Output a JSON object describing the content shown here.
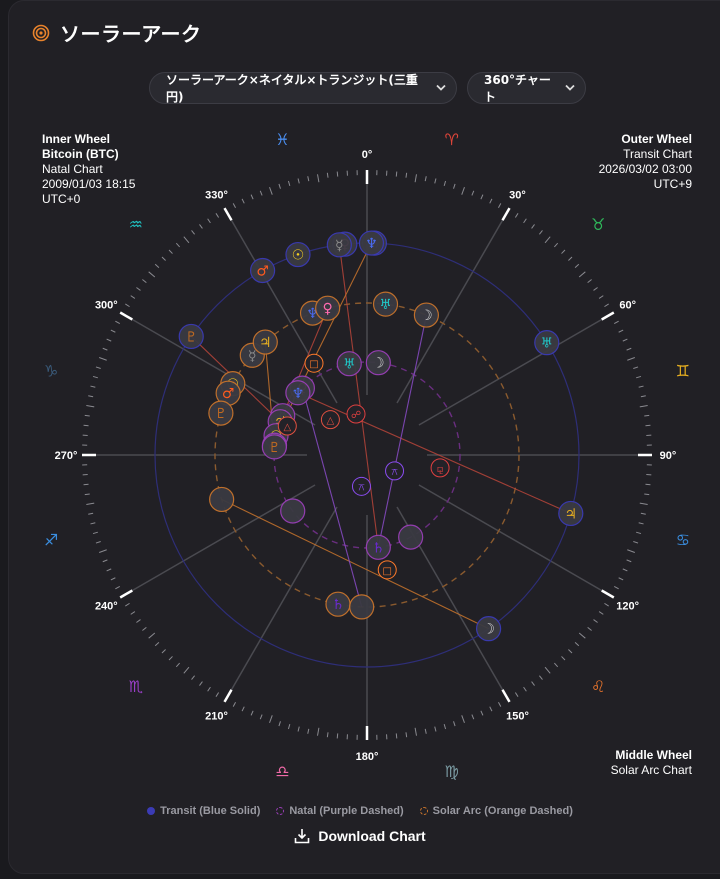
{
  "header": {
    "title": "ソーラーアーク",
    "icon": "target-icon"
  },
  "selects": {
    "chart_type": {
      "value": "ソーラーアーク×ネイタル×トランジット(三重円)"
    },
    "view": {
      "value": "360°チャート"
    }
  },
  "inner_wheel": {
    "label": "Inner Wheel",
    "subject": "Bitcoin (BTC)",
    "chart": "Natal Chart",
    "datetime": "2009/01/03 18:15",
    "tz": "UTC+0"
  },
  "outer_wheel": {
    "label": "Outer Wheel",
    "chart": "Transit Chart",
    "datetime": "2026/03/02 03:00",
    "tz": "UTC+9"
  },
  "middle_wheel": {
    "label": "Middle Wheel",
    "chart": "Solar Arc Chart"
  },
  "legend": [
    {
      "label": "Transit (Blue Solid)",
      "color": "#3b3bb5",
      "style": "solid"
    },
    {
      "label": "Natal (Purple Dashed)",
      "color": "#9a3fb8",
      "style": "dashed"
    },
    {
      "label": "Solar Arc (Orange Dashed)",
      "color": "#c8742c",
      "style": "dashed"
    }
  ],
  "download_label": "Download Chart",
  "colors": {
    "transit": "#3b3bb5",
    "natal": "#9a3fb8",
    "solar_arc": "#c8742c",
    "aspect_red": "#b8453a",
    "aspect_orange": "#c8742c",
    "aspect_purple": "#8a4cc8"
  },
  "chart_data": {
    "type": "radial-wheel",
    "degree_labels": [
      "0°",
      "30°",
      "60°",
      "90°",
      "120°",
      "150°",
      "180°",
      "210°",
      "240°",
      "270°",
      "300°",
      "330°"
    ],
    "zodiac": [
      {
        "sign": "Aries",
        "glyph": "♈",
        "color": "#e0453a",
        "mid_deg": 15
      },
      {
        "sign": "Taurus",
        "glyph": "♉",
        "color": "#2fb85a",
        "mid_deg": 45
      },
      {
        "sign": "Gemini",
        "glyph": "♊",
        "color": "#e8b020",
        "mid_deg": 75
      },
      {
        "sign": "Cancer",
        "glyph": "♋",
        "color": "#3a8ee0",
        "mid_deg": 105
      },
      {
        "sign": "Leo",
        "glyph": "♌",
        "color": "#e8742c",
        "mid_deg": 135
      },
      {
        "sign": "Virgo",
        "glyph": "♍",
        "color": "#7a9aa2",
        "mid_deg": 165
      },
      {
        "sign": "Libra",
        "glyph": "♎",
        "color": "#f06aa8",
        "mid_deg": 195
      },
      {
        "sign": "Scorpio",
        "glyph": "♏",
        "color": "#9a3fc8",
        "mid_deg": 225
      },
      {
        "sign": "Sagittarius",
        "glyph": "♐",
        "color": "#3a8ee0",
        "mid_deg": 255
      },
      {
        "sign": "Capricorn",
        "glyph": "♑",
        "color": "#3a5a7a",
        "mid_deg": 285
      },
      {
        "sign": "Aquarius",
        "glyph": "♒",
        "color": "#20c0c0",
        "mid_deg": 315
      },
      {
        "sign": "Pisces",
        "glyph": "♓",
        "color": "#4a8ef0",
        "mid_deg": 345
      }
    ],
    "house_cusps_deg": [
      0,
      30,
      60,
      90,
      120,
      150,
      180,
      210,
      240,
      270,
      300,
      330
    ],
    "transit": [
      {
        "name": "Mars",
        "glyph": "♂",
        "color": "#ff5a1e",
        "deg": 330.5
      },
      {
        "name": "Sun",
        "glyph": "☉",
        "color": "#f5d020",
        "deg": 341
      },
      {
        "name": "Venus",
        "glyph": "♀",
        "color": "#ff6ab0",
        "deg": 354
      },
      {
        "name": "Saturn",
        "glyph": "♄",
        "color": "#6a2ad0",
        "deg": 2
      },
      {
        "name": "Mercury",
        "glyph": "☿",
        "color": "#8a8a8a",
        "deg": 352.5
      },
      {
        "name": "Neptune",
        "glyph": "♆",
        "color": "#4a6af0",
        "deg": 1.2
      },
      {
        "name": "Pluto",
        "glyph": "♇",
        "color": "#c06a20",
        "deg": 304
      },
      {
        "name": "Uranus",
        "glyph": "♅",
        "color": "#20c8c8",
        "deg": 58
      },
      {
        "name": "Jupiter",
        "glyph": "♃",
        "color": "#e8b020",
        "deg": 106
      },
      {
        "name": "Moon",
        "glyph": "☽",
        "color": "#d0d0d0",
        "deg": 145
      }
    ],
    "solar_arc": [
      {
        "name": "Mercury",
        "glyph": "☿",
        "color": "#8a8a8a",
        "deg": 311
      },
      {
        "name": "Jupiter",
        "glyph": "♃",
        "color": "#e8b020",
        "deg": 318
      },
      {
        "name": "Neptune",
        "glyph": "♆",
        "color": "#4a6af0",
        "deg": 339
      },
      {
        "name": "Venus",
        "glyph": "♀",
        "color": "#ff6ab0",
        "deg": 345
      },
      {
        "name": "Uranus",
        "glyph": "♅",
        "color": "#20c8c8",
        "deg": 7
      },
      {
        "name": "Moon",
        "glyph": "☽",
        "color": "#d0d0d0",
        "deg": 23
      },
      {
        "name": "Sun",
        "glyph": "☉",
        "color": "#f5d020",
        "deg": 298
      },
      {
        "name": "Mars",
        "glyph": "♂",
        "color": "#ff5a1e",
        "deg": 294
      },
      {
        "name": "Pluto",
        "glyph": "♇",
        "color": "#c06a20",
        "deg": 286
      },
      {
        "name": "Node-empty-1",
        "glyph": "",
        "color": "#888",
        "deg": 253
      },
      {
        "name": "Saturn",
        "glyph": "♄",
        "color": "#6a2ad0",
        "deg": 191
      },
      {
        "name": "Node-empty-2",
        "glyph": "",
        "color": "#888",
        "deg": 182
      }
    ],
    "natal": [
      {
        "name": "Uranus",
        "glyph": "♅",
        "color": "#20c8c8",
        "deg": 349
      },
      {
        "name": "Moon",
        "glyph": "☽",
        "color": "#d0d0d0",
        "deg": 7
      },
      {
        "name": "Venus",
        "glyph": "♀",
        "color": "#ff6ab0",
        "deg": 316
      },
      {
        "name": "Neptune",
        "glyph": "♆",
        "color": "#4a6af0",
        "deg": 312
      },
      {
        "name": "Mercury",
        "glyph": "☿",
        "color": "#8a8a8a",
        "deg": 295
      },
      {
        "name": "Jupiter",
        "glyph": "♃",
        "color": "#e8b020",
        "deg": 291
      },
      {
        "name": "Sun",
        "glyph": "☉",
        "color": "#f5d020",
        "deg": 282
      },
      {
        "name": "Mars",
        "glyph": "♂",
        "color": "#ff5a1e",
        "deg": 276
      },
      {
        "name": "Pluto",
        "glyph": "♇",
        "color": "#c06a20",
        "deg": 275
      },
      {
        "name": "Node-empty",
        "glyph": "",
        "color": "#888",
        "deg": 233
      },
      {
        "name": "Saturn",
        "glyph": "♄",
        "color": "#6a2ad0",
        "deg": 173
      },
      {
        "name": "Chiron-empty",
        "glyph": "",
        "color": "#888",
        "deg": 152
      }
    ],
    "aspect_markers": [
      {
        "glyph": "△",
        "color": "#e05040",
        "x_deg": 314,
        "r_frac": 0.24,
        "ring": "sa"
      },
      {
        "glyph": "□",
        "color": "#ff7a2a",
        "x_deg": 330,
        "r_frac": 0.5
      },
      {
        "glyph": "△",
        "color": "#e05040",
        "x_deg": 290,
        "r_frac": 0.4
      },
      {
        "glyph": "☍",
        "color": "#e04040",
        "x_deg": 345,
        "r_frac": 0.2
      },
      {
        "glyph": "⚻",
        "color": "#8a4cf0",
        "x_deg": 120,
        "r_frac": 0.15
      },
      {
        "glyph": "⚼",
        "color": "#e04040",
        "x_deg": 100,
        "r_frac": 0.35
      },
      {
        "glyph": "⚻",
        "color": "#8a4cf0",
        "x_deg": 190,
        "r_frac": 0.15
      },
      {
        "glyph": "□",
        "color": "#ff7a2a",
        "x_deg": 170,
        "r_frac": 0.55
      }
    ]
  }
}
